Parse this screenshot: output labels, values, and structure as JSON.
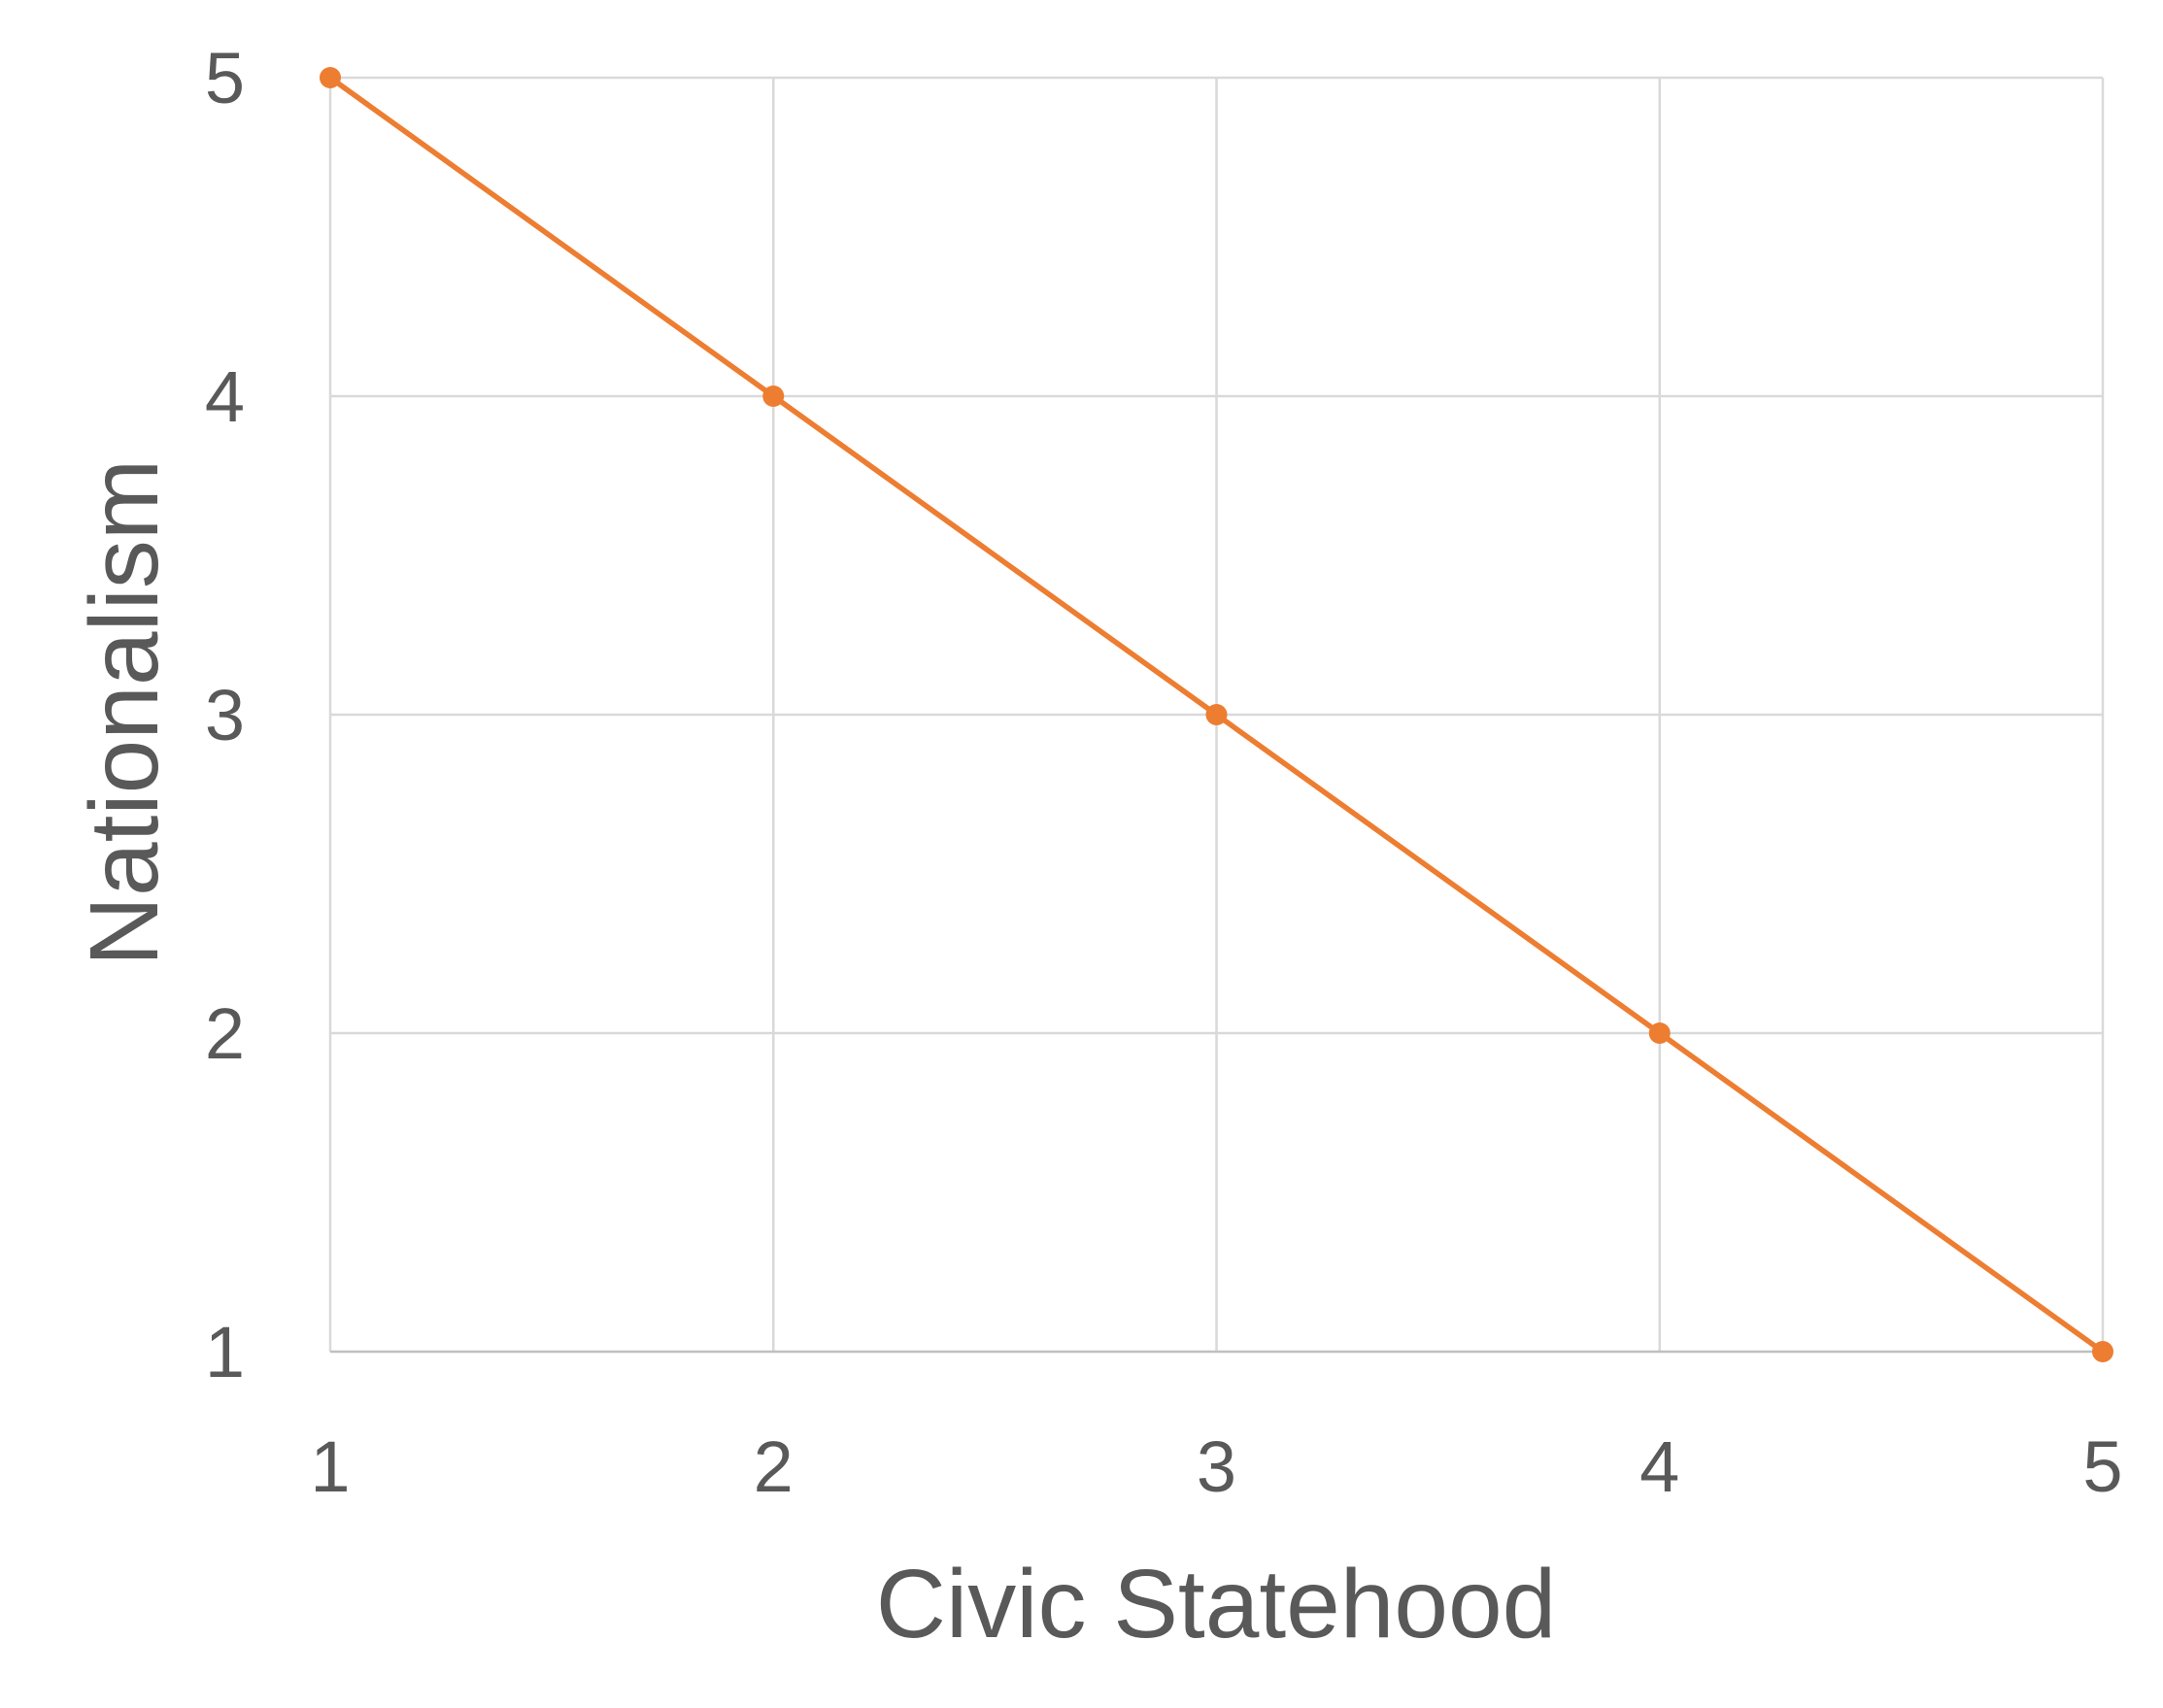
{
  "chart_data": {
    "type": "line",
    "title": "",
    "xlabel": "Civic Statehood",
    "ylabel": "Nationalism",
    "x": [
      1,
      2,
      3,
      4,
      5
    ],
    "xlim": [
      1,
      5
    ],
    "ylim": [
      1,
      5
    ],
    "x_ticks": [
      "1",
      "2",
      "3",
      "4",
      "5"
    ],
    "y_ticks": [
      "1",
      "2",
      "3",
      "4",
      "5"
    ],
    "grid": true,
    "legend": "none",
    "series": [
      {
        "values": [
          5,
          4,
          3,
          2,
          1
        ],
        "color": "#ed7d31",
        "markers": true
      }
    ]
  },
  "colors": {
    "text": "#595959",
    "grid": "#d9d9d9",
    "axis": "#bfbfbf",
    "series": "#ed7d31"
  }
}
